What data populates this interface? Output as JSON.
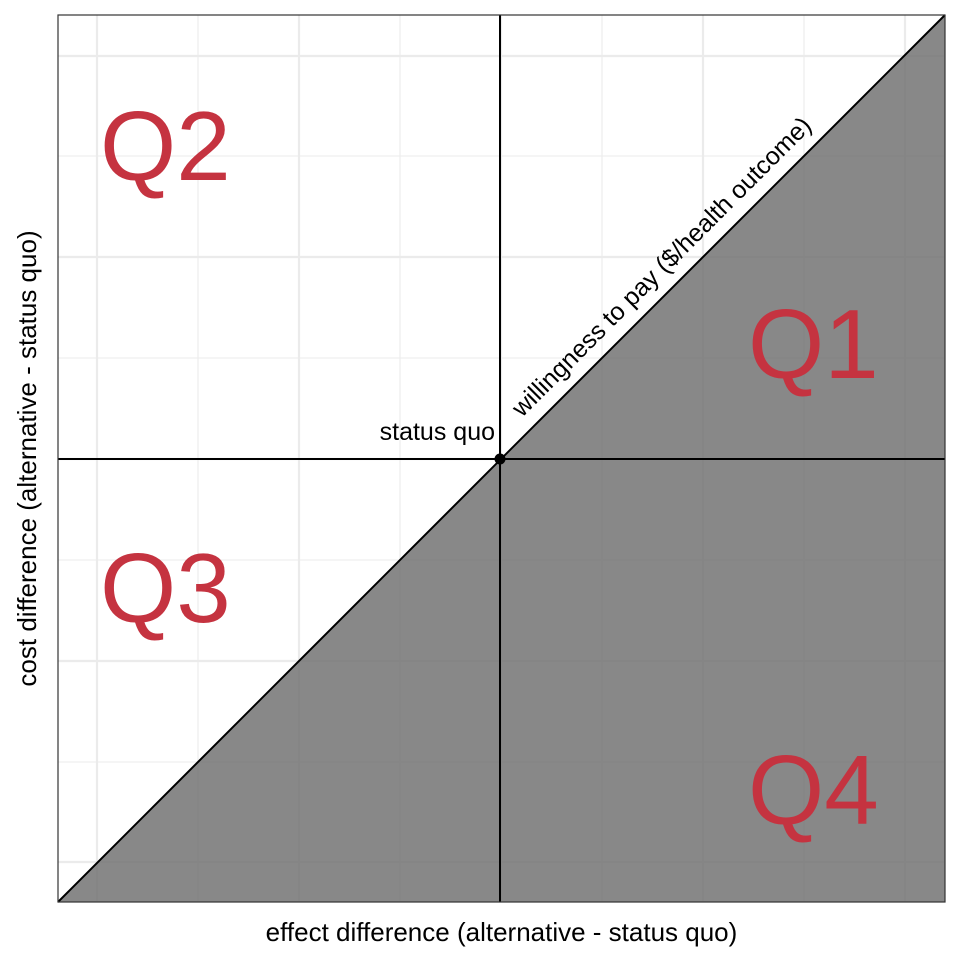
{
  "chart_data": {
    "type": "diagram",
    "title": "",
    "xlabel": "effect difference (alternative - status quo)",
    "ylabel": "cost difference (alternative - status quo)",
    "xlim": [
      -1,
      1
    ],
    "ylim": [
      -1,
      1
    ],
    "grid": true,
    "origin": {
      "x": 0,
      "y": 0,
      "label": "status quo"
    },
    "wtp_line": {
      "label": "willingness to pay ($/health outcome)",
      "slope": 1,
      "intercept": 0,
      "shaded_below": true
    },
    "quadrants": [
      {
        "label": "Q1",
        "x": 0.73,
        "y": 0.52
      },
      {
        "label": "Q2",
        "x": -0.73,
        "y": 1.43
      },
      {
        "label": "Q3",
        "x": -0.73,
        "y": 0.49
      },
      {
        "label": "Q4",
        "x": 0.73,
        "y": 0.48
      }
    ],
    "colors": {
      "quadrant_label": "#C53340",
      "shade": "#6E6E6E",
      "grid": "#EBEBEB",
      "axis": "#000000"
    }
  }
}
